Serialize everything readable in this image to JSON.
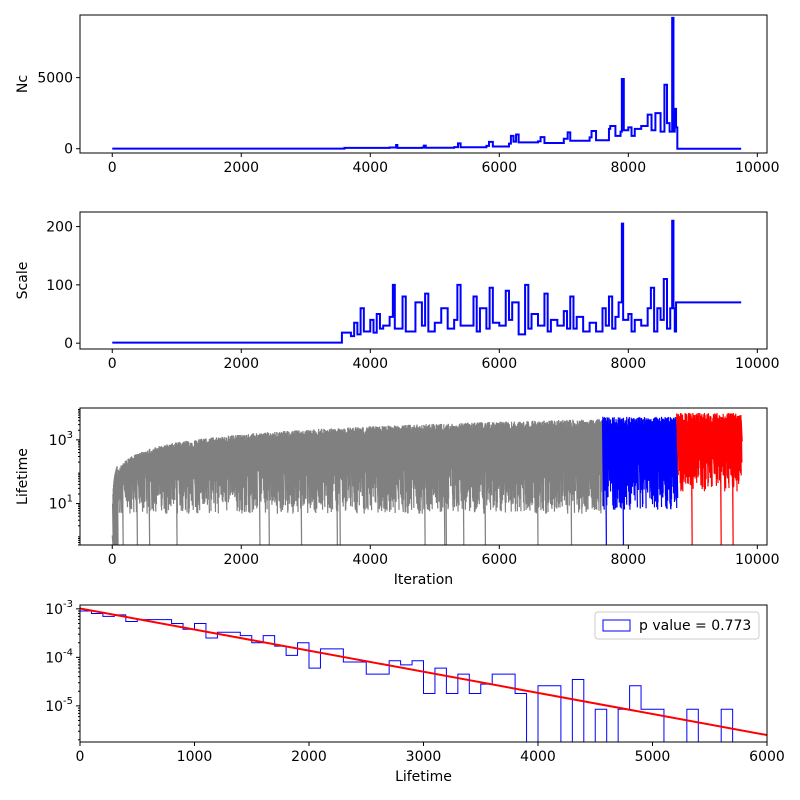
{
  "chart_data": [
    {
      "type": "line",
      "ylabel": "Nc",
      "xlabel": "",
      "xlim": [
        -500,
        10150
      ],
      "ylim": [
        -300,
        9400
      ],
      "yscale": "linear",
      "xticks": [
        0,
        2000,
        4000,
        6000,
        8000,
        10000
      ],
      "yticks": [
        0,
        5000
      ],
      "color": "#0000ff",
      "series": [
        {
          "points": [
            [
              0,
              10
            ],
            [
              2000,
              10
            ],
            [
              3600,
              20
            ],
            [
              3600,
              60
            ],
            [
              4300,
              90
            ],
            [
              4400,
              260
            ],
            [
              4420,
              60
            ],
            [
              4800,
              80
            ],
            [
              4830,
              220
            ],
            [
              4860,
              70
            ],
            [
              5300,
              110
            ],
            [
              5360,
              380
            ],
            [
              5400,
              100
            ],
            [
              5800,
              200
            ],
            [
              5840,
              480
            ],
            [
              5900,
              160
            ],
            [
              6150,
              360
            ],
            [
              6180,
              900
            ],
            [
              6220,
              500
            ],
            [
              6260,
              1000
            ],
            [
              6300,
              450
            ],
            [
              6600,
              520
            ],
            [
              6640,
              820
            ],
            [
              6700,
              400
            ],
            [
              7000,
              700
            ],
            [
              7060,
              1150
            ],
            [
              7100,
              560
            ],
            [
              7400,
              800
            ],
            [
              7430,
              1250
            ],
            [
              7500,
              600
            ],
            [
              7700,
              1400
            ],
            [
              7720,
              1600
            ],
            [
              7800,
              900
            ],
            [
              7880,
              1200
            ],
            [
              7900,
              4900
            ],
            [
              7930,
              1300
            ],
            [
              8000,
              1500
            ],
            [
              8050,
              900
            ],
            [
              8100,
              1400
            ],
            [
              8200,
              1600
            ],
            [
              8300,
              2400
            ],
            [
              8360,
              1300
            ],
            [
              8420,
              2500
            ],
            [
              8500,
              1200
            ],
            [
              8560,
              4500
            ],
            [
              8600,
              1800
            ],
            [
              8640,
              1200
            ],
            [
              8680,
              9200
            ],
            [
              8700,
              1200
            ],
            [
              8720,
              2800
            ],
            [
              8740,
              1500
            ],
            [
              8760,
              0
            ],
            [
              9750,
              0
            ]
          ]
        }
      ]
    },
    {
      "type": "line",
      "ylabel": "Scale",
      "xlabel": "",
      "xlim": [
        -500,
        10150
      ],
      "ylim": [
        -10,
        225
      ],
      "yscale": "linear",
      "xticks": [
        0,
        2000,
        4000,
        6000,
        8000,
        10000
      ],
      "yticks": [
        0,
        100,
        200
      ],
      "color": "#0000ff",
      "series": [
        {
          "points": [
            [
              0,
              1
            ],
            [
              3550,
              1
            ],
            [
              3560,
              18
            ],
            [
              3700,
              12
            ],
            [
              3750,
              35
            ],
            [
              3800,
              15
            ],
            [
              3850,
              60
            ],
            [
              3900,
              20
            ],
            [
              4000,
              40
            ],
            [
              4050,
              18
            ],
            [
              4100,
              50
            ],
            [
              4150,
              25
            ],
            [
              4200,
              30
            ],
            [
              4300,
              45
            ],
            [
              4350,
              100
            ],
            [
              4380,
              25
            ],
            [
              4500,
              80
            ],
            [
              4550,
              20
            ],
            [
              4700,
              70
            ],
            [
              4800,
              30
            ],
            [
              4850,
              85
            ],
            [
              4900,
              20
            ],
            [
              5000,
              35
            ],
            [
              5100,
              60
            ],
            [
              5200,
              25
            ],
            [
              5300,
              40
            ],
            [
              5350,
              100
            ],
            [
              5400,
              30
            ],
            [
              5600,
              80
            ],
            [
              5650,
              20
            ],
            [
              5700,
              60
            ],
            [
              5800,
              25
            ],
            [
              5850,
              95
            ],
            [
              5900,
              35
            ],
            [
              6000,
              30
            ],
            [
              6100,
              90
            ],
            [
              6150,
              40
            ],
            [
              6200,
              70
            ],
            [
              6300,
              15
            ],
            [
              6400,
              100
            ],
            [
              6450,
              25
            ],
            [
              6500,
              50
            ],
            [
              6600,
              30
            ],
            [
              6700,
              85
            ],
            [
              6750,
              20
            ],
            [
              6800,
              40
            ],
            [
              6900,
              30
            ],
            [
              7000,
              55
            ],
            [
              7050,
              25
            ],
            [
              7100,
              80
            ],
            [
              7150,
              25
            ],
            [
              7200,
              45
            ],
            [
              7300,
              20
            ],
            [
              7400,
              35
            ],
            [
              7500,
              20
            ],
            [
              7600,
              60
            ],
            [
              7650,
              30
            ],
            [
              7700,
              80
            ],
            [
              7750,
              25
            ],
            [
              7800,
              45
            ],
            [
              7850,
              70
            ],
            [
              7900,
              205
            ],
            [
              7920,
              40
            ],
            [
              8000,
              50
            ],
            [
              8050,
              20
            ],
            [
              8100,
              40
            ],
            [
              8200,
              30
            ],
            [
              8300,
              60
            ],
            [
              8350,
              95
            ],
            [
              8400,
              20
            ],
            [
              8450,
              60
            ],
            [
              8500,
              40
            ],
            [
              8550,
              110
            ],
            [
              8600,
              25
            ],
            [
              8650,
              60
            ],
            [
              8680,
              210
            ],
            [
              8700,
              60
            ],
            [
              8720,
              20
            ],
            [
              8740,
              70
            ],
            [
              9750,
              70
            ]
          ]
        }
      ]
    },
    {
      "type": "line",
      "ylabel": "Lifetime",
      "xlabel": "Iteration",
      "xlim": [
        -500,
        10150
      ],
      "ylim": [
        0.5,
        10000
      ],
      "yscale": "log",
      "xticks": [
        0,
        2000,
        4000,
        6000,
        8000,
        10000
      ],
      "yticks": [
        10,
        1000
      ],
      "series": [
        {
          "range": [
            0,
            7600
          ],
          "color": "#808080",
          "upper": 3500,
          "lower_typical": 30
        },
        {
          "range": [
            7600,
            8750
          ],
          "color": "#0000ff",
          "upper": 3800,
          "lower_typical": 40
        },
        {
          "range": [
            8750,
            9750
          ],
          "color": "#ff0000",
          "upper": 5000,
          "lower_typical": 150
        }
      ]
    },
    {
      "type": "histogram",
      "xlabel": "Lifetime",
      "ylabel": "",
      "xlim": [
        0,
        6000
      ],
      "ylim": [
        1.8e-06,
        0.0012
      ],
      "yscale": "log",
      "xticks": [
        0,
        1000,
        2000,
        3000,
        4000,
        5000,
        6000
      ],
      "yticks": [
        1e-05,
        0.0001,
        0.001
      ],
      "legend": {
        "label": "p value = 0.773",
        "placement": "upper right"
      },
      "bins": {
        "edges": [
          0,
          100,
          200,
          300,
          400,
          500,
          600,
          700,
          800,
          900,
          1000,
          1100,
          1200,
          1300,
          1400,
          1500,
          1600,
          1700,
          1800,
          1900,
          2000,
          2100,
          2200,
          2300,
          2400,
          2500,
          2600,
          2700,
          2800,
          2900,
          3000,
          3100,
          3200,
          3300,
          3400,
          3500,
          3600,
          3700,
          3800,
          3900,
          4000,
          4100,
          4200,
          4300,
          4400,
          4500,
          4600,
          4700,
          4800,
          4900,
          5000,
          5100,
          5200,
          5300,
          5400,
          5500,
          5600,
          5700
        ],
        "counts": [
          0.0009,
          0.0008,
          0.0007,
          0.00075,
          0.00055,
          0.0006,
          0.0006,
          0.0006,
          0.0005,
          0.00038,
          0.0005,
          0.00025,
          0.00033,
          0.00033,
          0.00028,
          0.0002,
          0.00028,
          0.00017,
          0.00011,
          0.0002,
          6e-05,
          0.00015,
          0.00015,
          8e-05,
          8e-05,
          4.5e-05,
          4.5e-05,
          8.5e-05,
          7e-05,
          8.5e-05,
          1.8e-05,
          6e-05,
          1.8e-05,
          4.5e-05,
          1.8e-05,
          2.8e-05,
          4.5e-05,
          4.5e-05,
          1.8e-05,
          0,
          2.6e-05,
          2.6e-05,
          0,
          3.5e-05,
          0,
          8.5e-06,
          0,
          8.5e-06,
          2.6e-05,
          8.5e-06,
          8.5e-06,
          0,
          0,
          8.5e-06,
          0,
          0,
          8.5e-06
        ]
      },
      "fit_line": {
        "color": "#ff0000",
        "x": [
          0,
          6000
        ],
        "y": [
          0.00102,
          2.5e-06
        ]
      }
    }
  ]
}
